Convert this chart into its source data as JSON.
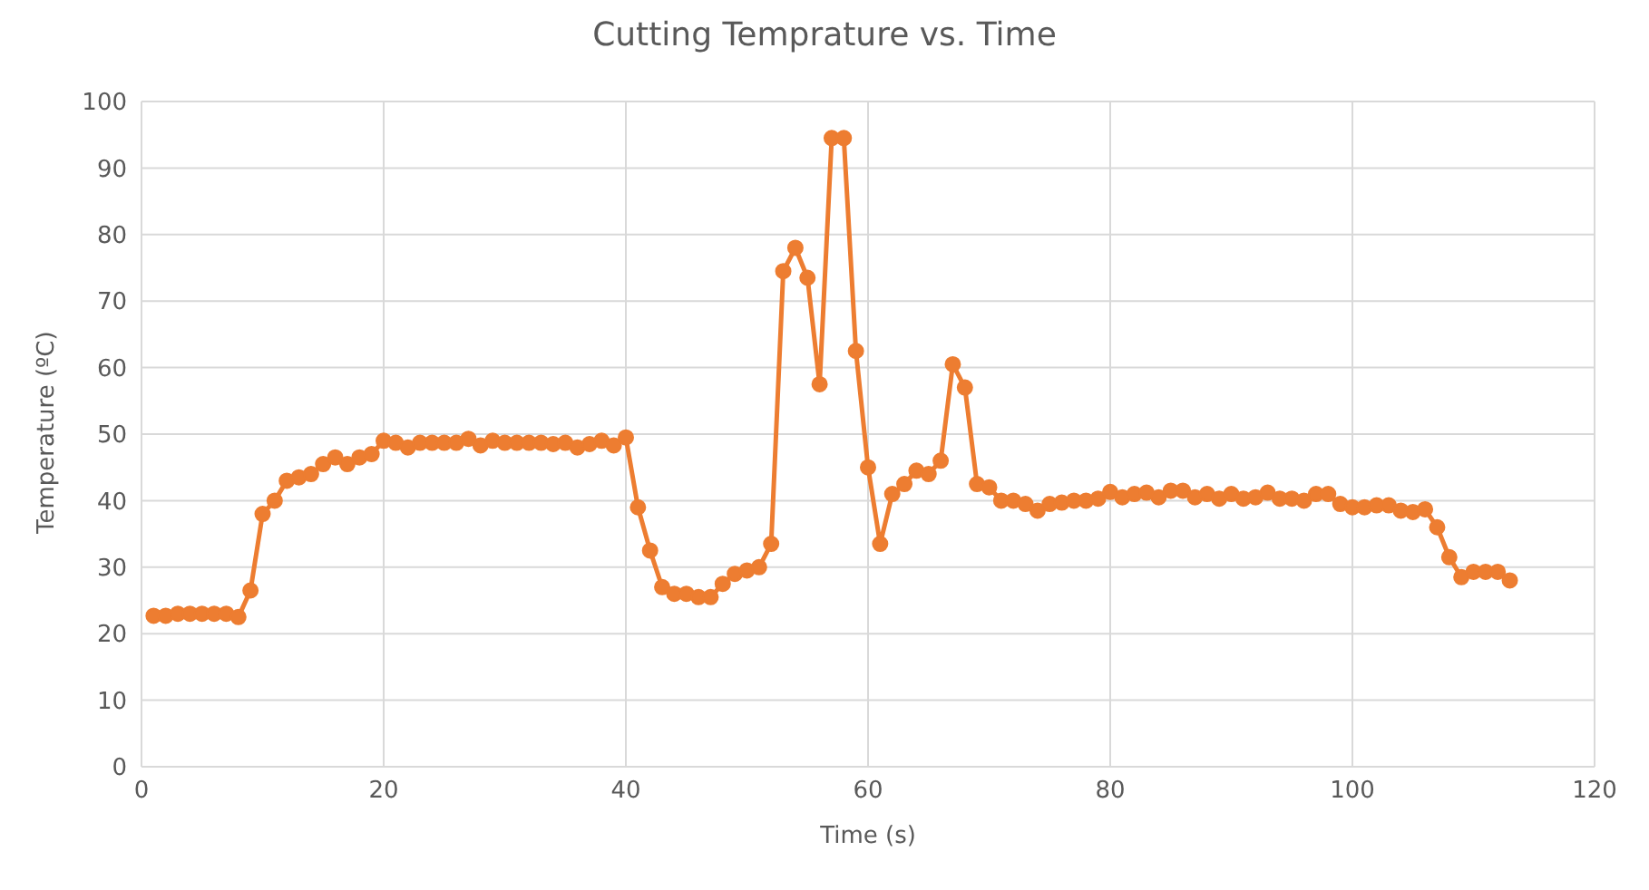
{
  "chart_data": {
    "type": "line",
    "title": "Cutting Temprature vs. Time",
    "xlabel": "Time (s)",
    "ylabel": "Temperature (ºC)",
    "xlim": [
      0,
      120
    ],
    "xticks": [
      0,
      20,
      40,
      60,
      80,
      100,
      120
    ],
    "ylim": [
      0,
      100
    ],
    "yticks": [
      0,
      10,
      20,
      30,
      40,
      50,
      60,
      70,
      80,
      90,
      100
    ],
    "grid": true,
    "legend": false,
    "marker": "circle",
    "line_style": "solid",
    "x": [
      1,
      2,
      3,
      4,
      5,
      6,
      7,
      8,
      9,
      10,
      11,
      12,
      13,
      14,
      15,
      16,
      17,
      18,
      19,
      20,
      21,
      22,
      23,
      24,
      25,
      26,
      27,
      28,
      29,
      30,
      31,
      32,
      33,
      34,
      35,
      36,
      37,
      38,
      39,
      40,
      41,
      42,
      43,
      44,
      45,
      46,
      47,
      48,
      49,
      50,
      51,
      52,
      53,
      54,
      55,
      56,
      57,
      58,
      59,
      60,
      61,
      62,
      63,
      64,
      65,
      66,
      67,
      68,
      69,
      70,
      71,
      72,
      73,
      74,
      75,
      76,
      77,
      78,
      79,
      80,
      81,
      82,
      83,
      84,
      85,
      86,
      87,
      88,
      89,
      90,
      91,
      92,
      93,
      94,
      95,
      96,
      97,
      98,
      99,
      100,
      101,
      102,
      103,
      104,
      105,
      106,
      107,
      108,
      109,
      110,
      111,
      112,
      113
    ],
    "series": [
      {
        "color": "#ed7d31",
        "values": [
          22.7,
          22.7,
          23,
          23,
          23,
          23,
          23,
          22.5,
          26.5,
          38,
          40,
          43,
          43.5,
          44,
          45.5,
          46.5,
          45.5,
          46.5,
          47,
          49,
          48.7,
          48,
          48.7,
          48.7,
          48.7,
          48.7,
          49.3,
          48.3,
          49,
          48.7,
          48.7,
          48.7,
          48.7,
          48.5,
          48.7,
          48,
          48.5,
          49,
          48.3,
          49.5,
          39,
          32.5,
          27,
          26,
          26,
          25.5,
          25.5,
          27.5,
          29,
          29.5,
          30,
          33.5,
          74.5,
          78,
          73.5,
          57.5,
          94.5,
          94.5,
          62.5,
          45,
          33.5,
          41,
          42.5,
          44.5,
          44,
          46,
          60.5,
          57,
          42.5,
          42,
          40,
          40,
          39.5,
          38.5,
          39.5,
          39.7,
          40,
          40,
          40.3,
          41.3,
          40.5,
          41,
          41.2,
          40.5,
          41.5,
          41.5,
          40.5,
          41,
          40.3,
          41,
          40.3,
          40.5,
          41.2,
          40.3,
          40.3,
          40,
          41,
          41,
          39.5,
          39,
          39,
          39.3,
          39.3,
          38.5,
          38.3,
          38.7,
          36,
          31.5,
          28.5,
          29.3,
          29.3,
          29.3,
          28
        ]
      }
    ]
  }
}
